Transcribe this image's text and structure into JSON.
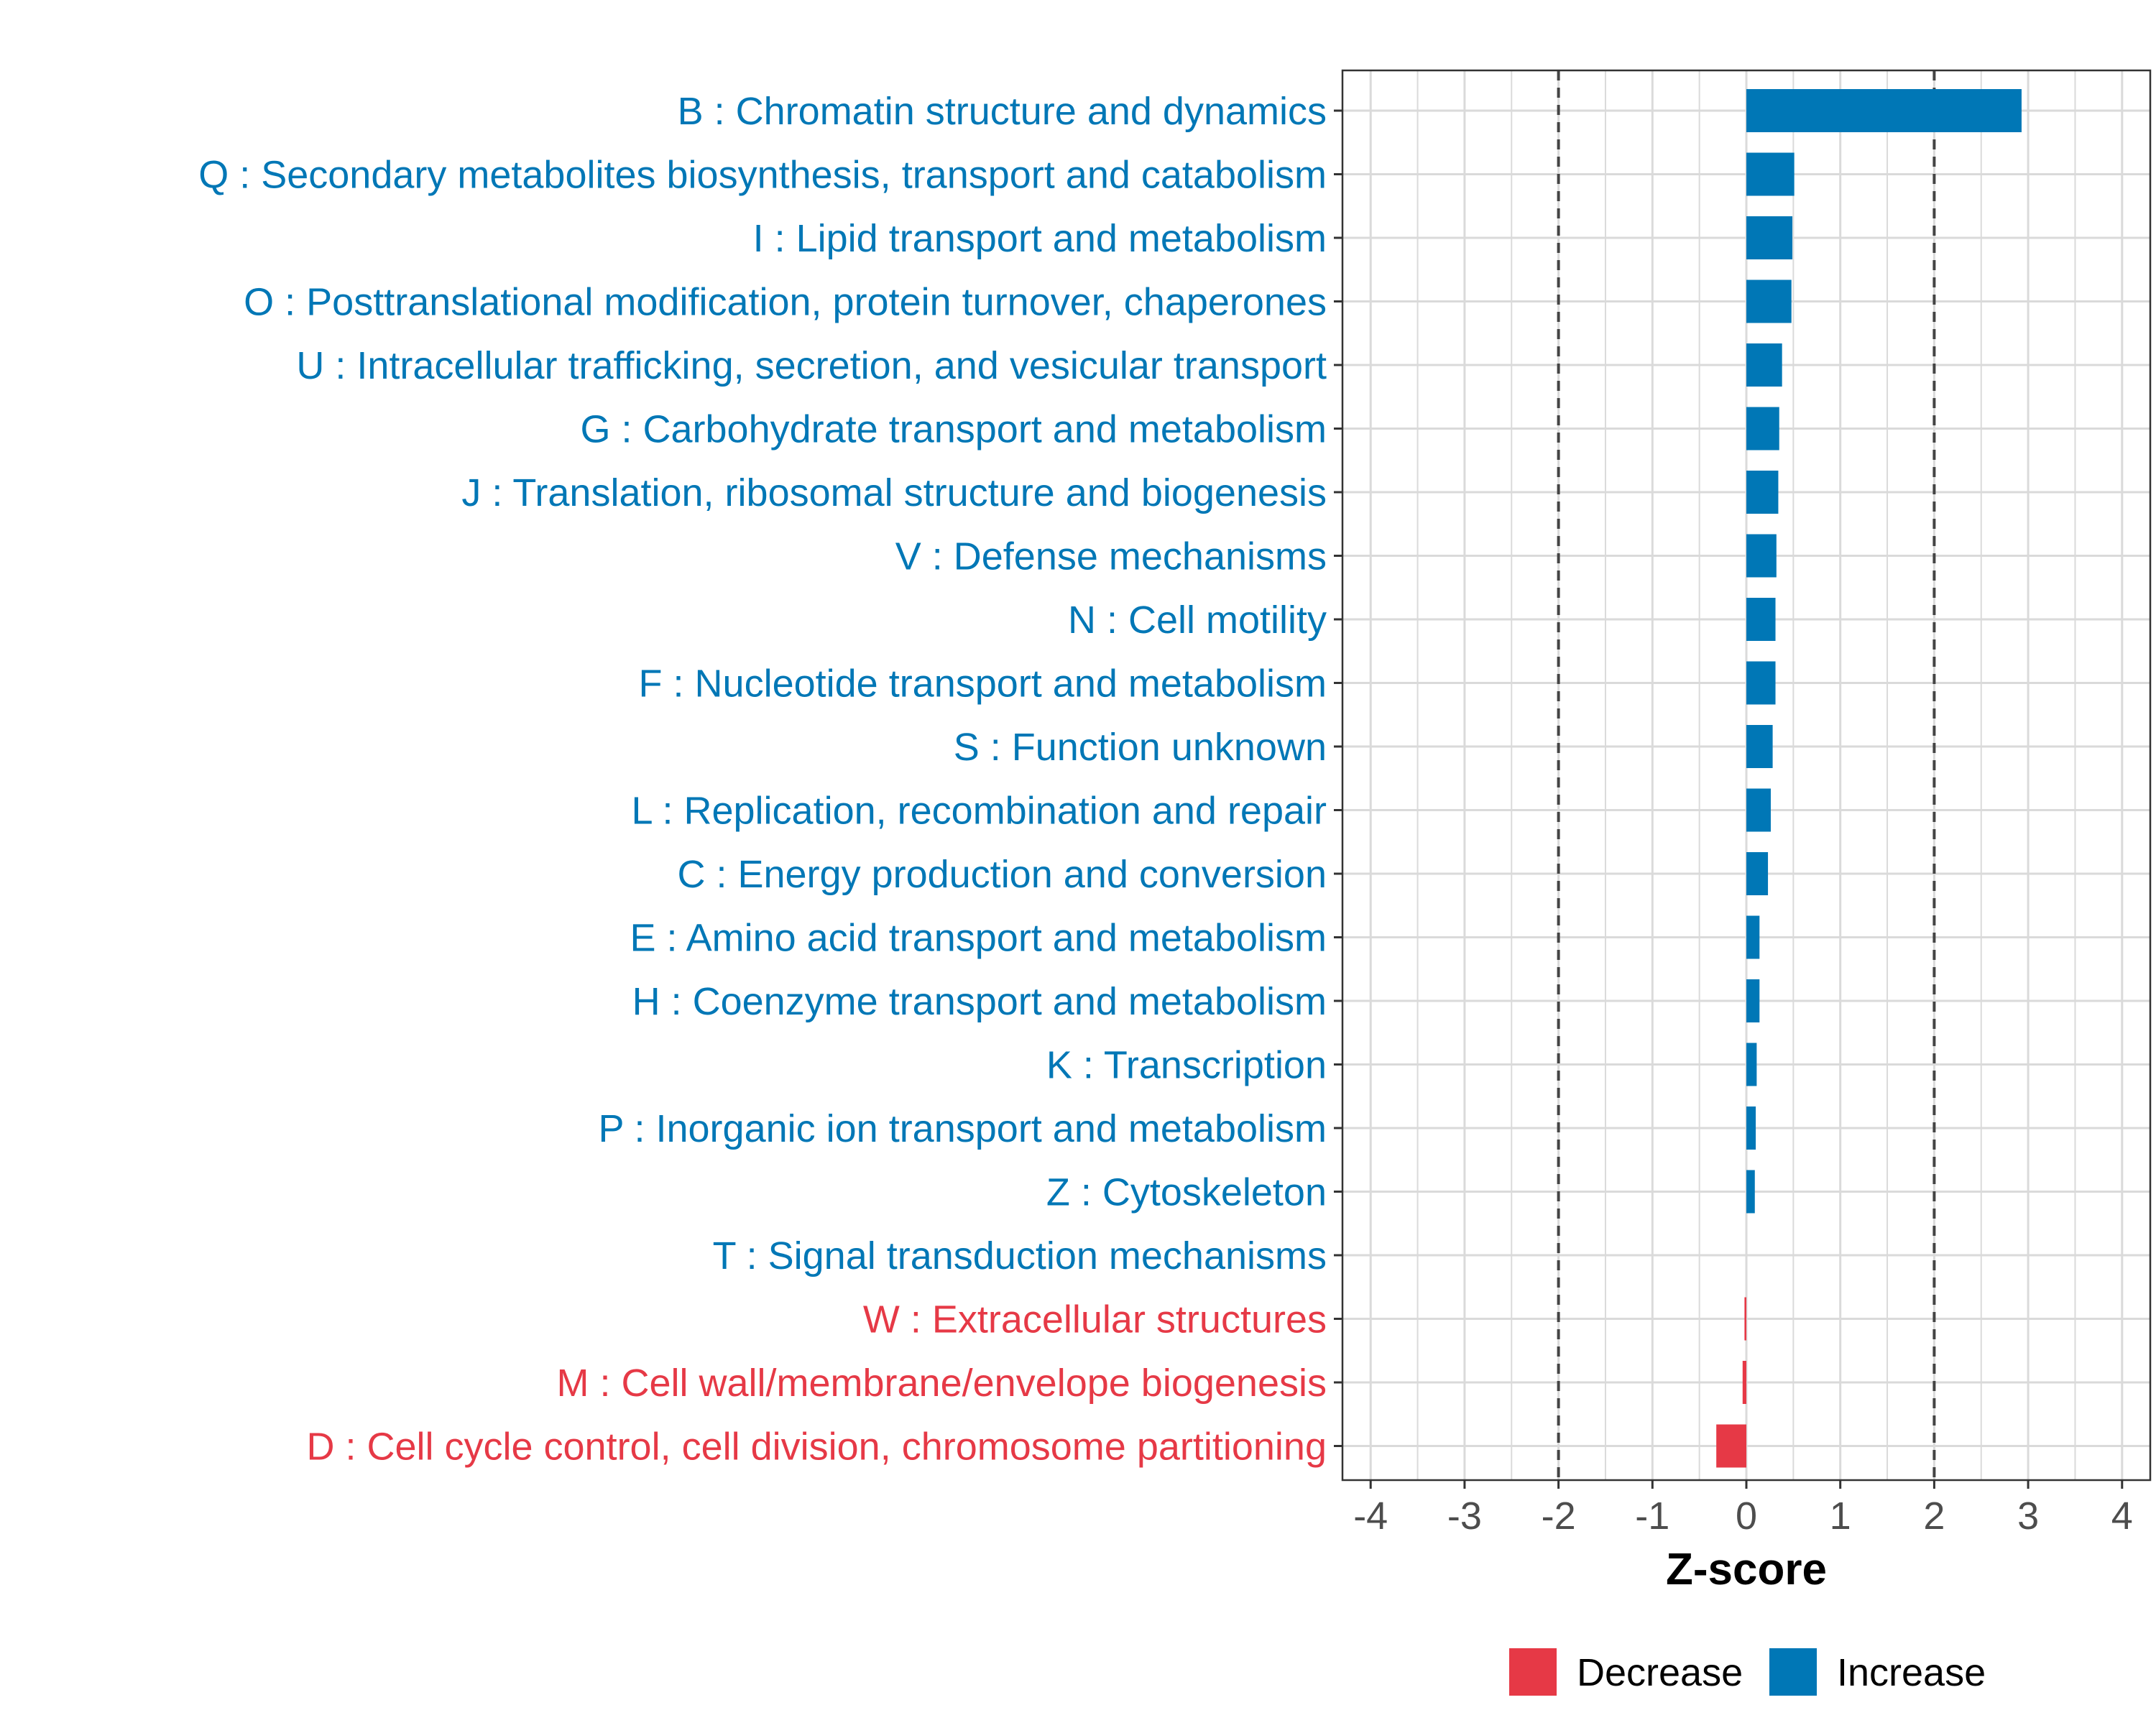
{
  "chart_data": {
    "type": "bar",
    "orientation": "horizontal",
    "categories": [
      "B : Chromatin structure and dynamics",
      "Q : Secondary metabolites biosynthesis, transport and catabolism",
      "I : Lipid transport and metabolism",
      "O : Posttranslational modification, protein turnover, chaperones",
      "U : Intracellular trafficking, secretion, and vesicular transport",
      "G : Carbohydrate transport and metabolism",
      "J : Translation, ribosomal structure and biogenesis",
      "V : Defense mechanisms",
      "N : Cell motility",
      "F : Nucleotide transport and metabolism",
      "S : Function unknown",
      "L : Replication, recombination and repair",
      "C : Energy production and conversion",
      "E : Amino acid transport and metabolism",
      "H : Coenzyme transport and metabolism",
      "K : Transcription",
      "P : Inorganic ion transport and metabolism",
      "Z : Cytoskeleton",
      "T : Signal transduction mechanisms",
      "W : Extracellular structures",
      "M : Cell wall/membrane/envelope biogenesis",
      "D : Cell cycle control, cell division, chromosome partitioning"
    ],
    "values": [
      2.93,
      0.51,
      0.49,
      0.48,
      0.38,
      0.35,
      0.34,
      0.32,
      0.31,
      0.31,
      0.28,
      0.26,
      0.23,
      0.14,
      0.14,
      0.11,
      0.1,
      0.09,
      0.0,
      -0.02,
      -0.04,
      -0.32
    ],
    "direction": [
      "Increase",
      "Increase",
      "Increase",
      "Increase",
      "Increase",
      "Increase",
      "Increase",
      "Increase",
      "Increase",
      "Increase",
      "Increase",
      "Increase",
      "Increase",
      "Increase",
      "Increase",
      "Increase",
      "Increase",
      "Increase",
      "Increase",
      "Decrease",
      "Decrease",
      "Decrease"
    ],
    "xlabel": "Z-score",
    "ylabel": "",
    "xlim": [
      -4.3,
      4.3
    ],
    "xticks": [
      -4,
      -3,
      -2,
      -1,
      0,
      1,
      2,
      3,
      4
    ],
    "reference_lines": [
      -2,
      2
    ],
    "grid": true,
    "legend": {
      "position": "bottom",
      "entries": [
        {
          "label": "Decrease",
          "color": "#E63946"
        },
        {
          "label": "Increase",
          "color": "#0077B6"
        }
      ]
    }
  },
  "colors": {
    "increase": "#0077B6",
    "decrease": "#E63946",
    "grid": "#dadada",
    "axis": "#333333",
    "tick_text": "#4d4d4d"
  }
}
